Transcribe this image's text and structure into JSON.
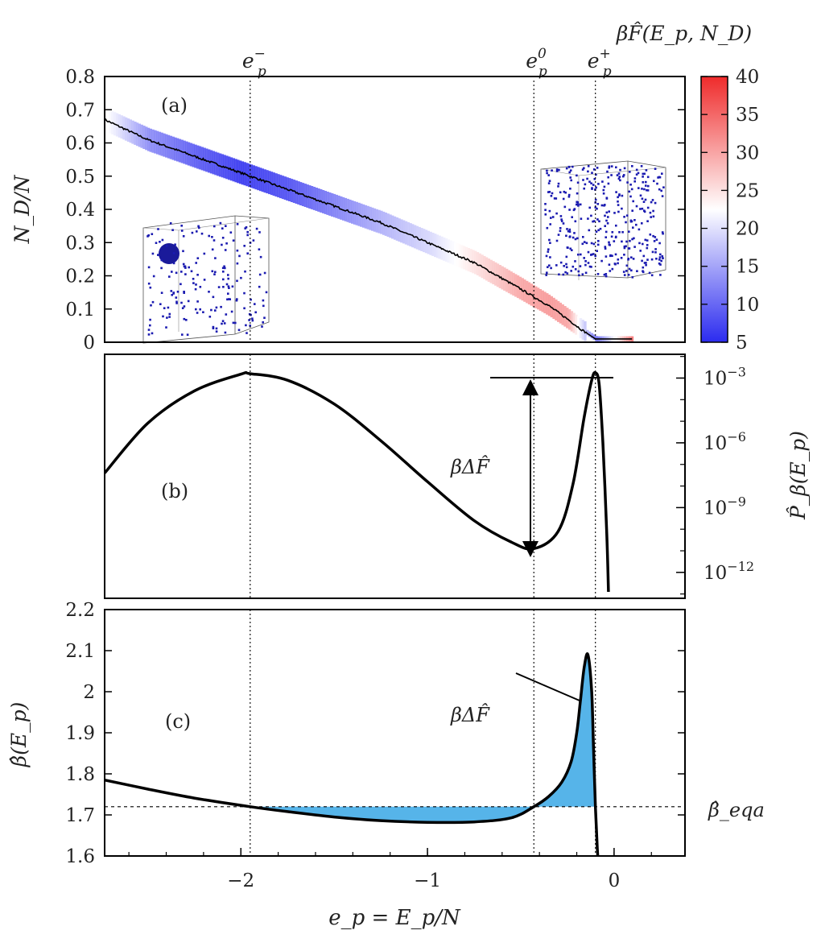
{
  "chart_data": [
    {
      "panel": "(a)",
      "type": "heatmap",
      "xlim": [
        -2.73,
        0.38
      ],
      "ylim": [
        0,
        0.8
      ],
      "ylabel": "N_D/N",
      "yticks": [
        "0",
        "0.1",
        "0.2",
        "0.3",
        "0.4",
        "0.5",
        "0.6",
        "0.7",
        "0.8"
      ],
      "colorbar": {
        "label": "βF̂(E_p, N_D)",
        "range": [
          5,
          40
        ],
        "ticks": [
          "5",
          "10",
          "15",
          "20",
          "25",
          "30",
          "35",
          "40"
        ],
        "colors": [
          "#2b2bef",
          "#ffffff",
          "#ef2b2b"
        ]
      },
      "series": [
        {
          "x": [
            -2.73,
            -2.5,
            -2.25,
            -2.0,
            -1.75,
            -1.5,
            -1.25,
            -1.0,
            -0.75,
            -0.5,
            -0.35,
            -0.25,
            -0.18,
            -0.1,
            0.1
          ],
          "y": [
            0.67,
            0.61,
            0.56,
            0.51,
            0.46,
            0.41,
            0.36,
            0.3,
            0.24,
            0.16,
            0.11,
            0.07,
            0.04,
            0.01,
            0.01
          ]
        }
      ],
      "band_free_energy": [
        {
          "x": [
            -2.73,
            -2.5,
            -2.25,
            -2.0,
            -1.75,
            -1.5,
            -1.25,
            -1.0,
            -0.75,
            -0.5,
            -0.35,
            -0.25,
            -0.18,
            -0.1,
            0.1
          ],
          "f": [
            23,
            13,
            9,
            6,
            8,
            12,
            16,
            19,
            25,
            30,
            31,
            30,
            20,
            10,
            35
          ]
        }
      ]
    },
    {
      "panel": "(b)",
      "type": "line",
      "xlim": [
        -2.73,
        0.38
      ],
      "ylabel": "P̂_β(E_p)",
      "yscale": "log",
      "yticks": [
        "10^-3",
        "10^-6",
        "10^-9",
        "10^-12"
      ],
      "annotation": "βΔF̂",
      "series": [
        {
          "x": [
            -2.73,
            -2.5,
            -2.25,
            -2.0,
            -1.95,
            -1.75,
            -1.5,
            -1.25,
            -1.0,
            -0.75,
            -0.55,
            -0.43,
            -0.3,
            -0.22,
            -0.16,
            -0.12,
            -0.1,
            -0.08,
            -0.06,
            -0.04,
            -0.03
          ],
          "y": [
            -7.4,
            -5.1,
            -3.6,
            -2.82,
            -2.8,
            -3.1,
            -4.2,
            -5.9,
            -7.8,
            -9.6,
            -10.6,
            -10.9,
            -10.1,
            -7.9,
            -4.8,
            -3.1,
            -2.75,
            -3.3,
            -6.0,
            -10.0,
            -12.9
          ]
        }
      ]
    },
    {
      "panel": "(c)",
      "type": "line",
      "xlim": [
        -2.73,
        0.38
      ],
      "ylim": [
        1.6,
        2.2
      ],
      "xlabel": "e_p = E_p/N",
      "ylabel": "β̂(E_p)",
      "xticks": [
        "−2",
        "−1",
        "0"
      ],
      "yticks": [
        "1.6",
        "1.7",
        "1.8",
        "1.9",
        "2",
        "2.1",
        "2.2"
      ],
      "reference_level": 1.72,
      "reference_label": "β̂_eqa",
      "annotation": "βΔF̂",
      "fill_color": "#56b4e9",
      "series": [
        {
          "x": [
            -2.73,
            -2.5,
            -2.25,
            -1.95,
            -1.75,
            -1.5,
            -1.25,
            -1.0,
            -0.75,
            -0.55,
            -0.43,
            -0.35,
            -0.28,
            -0.23,
            -0.2,
            -0.18,
            -0.16,
            -0.14,
            -0.12,
            -0.11,
            -0.1,
            -0.09,
            -0.08
          ],
          "y": [
            1.785,
            1.763,
            1.741,
            1.72,
            1.708,
            1.695,
            1.686,
            1.682,
            1.683,
            1.693,
            1.72,
            1.745,
            1.78,
            1.83,
            1.9,
            1.98,
            2.06,
            2.09,
            2.0,
            1.86,
            1.72,
            1.62,
            1.55
          ]
        }
      ]
    }
  ],
  "vlines": [
    {
      "label": "e_p^−",
      "x": -1.95
    },
    {
      "label": "e_p^0",
      "x": -0.43
    },
    {
      "label": "e_p^+",
      "x": -0.1
    }
  ]
}
